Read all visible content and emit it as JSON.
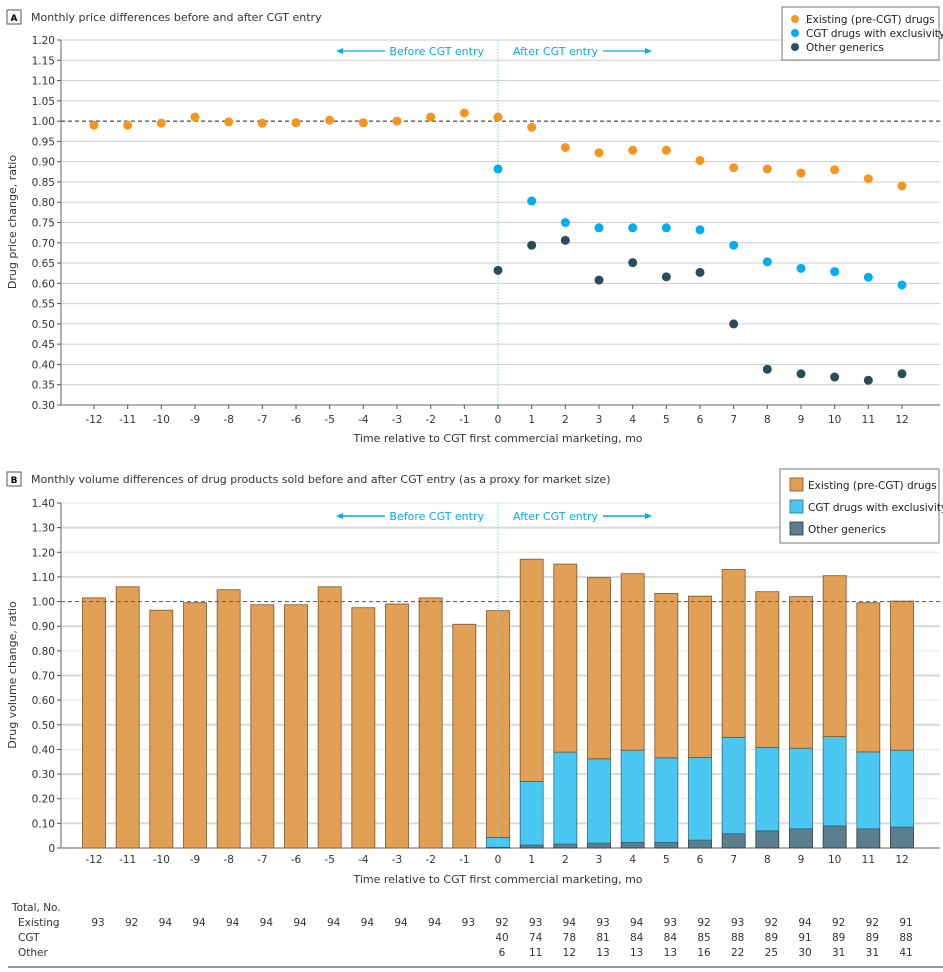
{
  "chart_data": [
    {
      "panel": "A",
      "type": "scatter",
      "title": "Monthly price differences before and after CGT entry",
      "xlabel": "Time relative to CGT first commercial marketing, mo",
      "ylabel": "Drug price change, ratio",
      "ylim": [
        0.3,
        1.2
      ],
      "yticks": [
        "0.30",
        "0.35",
        "0.40",
        "0.45",
        "0.50",
        "0.55",
        "0.60",
        "0.65",
        "0.70",
        "0.75",
        "0.80",
        "0.85",
        "0.90",
        "0.95",
        "1.00",
        "1.05",
        "1.10",
        "1.15",
        "1.20"
      ],
      "x": [
        -12,
        -11,
        -10,
        -9,
        -8,
        -7,
        -6,
        -5,
        -4,
        -3,
        -2,
        -1,
        0,
        1,
        2,
        3,
        4,
        5,
        6,
        7,
        8,
        9,
        10,
        11,
        12
      ],
      "reference_line": 1.0,
      "annotations": {
        "before": "Before CGT entry",
        "after": "After CGT entry"
      },
      "legend": "top-right",
      "grid": true,
      "series": [
        {
          "name": "Existing (pre-CGT) drugs",
          "color": "#f7941d",
          "x": [
            -12,
            -11,
            -10,
            -9,
            -8,
            -7,
            -6,
            -5,
            -4,
            -3,
            -2,
            -1,
            0,
            1,
            2,
            3,
            4,
            5,
            6,
            7,
            8,
            9,
            10,
            11,
            12
          ],
          "values": [
            0.99,
            0.99,
            0.995,
            1.01,
            0.998,
            0.995,
            0.996,
            1.002,
            0.996,
            1.0,
            1.01,
            1.02,
            1.01,
            0.985,
            0.935,
            0.922,
            0.928,
            0.928,
            0.903,
            0.885,
            0.882,
            0.872,
            0.88,
            0.858,
            0.84
          ]
        },
        {
          "name": "CGT drugs with exclusivity",
          "color": "#00aeef",
          "x": [
            0,
            1,
            2,
            3,
            4,
            5,
            6,
            7,
            8,
            9,
            10,
            11,
            12
          ],
          "values": [
            0.882,
            0.803,
            0.75,
            0.737,
            0.737,
            0.737,
            0.732,
            0.694,
            0.653,
            0.637,
            0.629,
            0.615,
            0.596
          ]
        },
        {
          "name": "Other generics",
          "color": "#2a4d5a",
          "x": [
            0,
            1,
            2,
            3,
            4,
            5,
            6,
            7,
            8,
            9,
            10,
            11,
            12
          ],
          "values": [
            0.632,
            0.694,
            0.706,
            0.608,
            0.651,
            0.616,
            0.627,
            0.5,
            0.388,
            0.377,
            0.369,
            0.361,
            0.377
          ]
        }
      ]
    },
    {
      "panel": "B",
      "type": "bar",
      "stacked": true,
      "title": "Monthly volume differences of drug products sold before and after CGT entry (as a proxy for market size)",
      "xlabel": "Time relative to CGT first commercial marketing, mo",
      "ylabel": "Drug volume change, ratio",
      "ylim": [
        0,
        1.4
      ],
      "yticks": [
        "0",
        "0.10",
        "0.20",
        "0.30",
        "0.40",
        "0.50",
        "0.60",
        "0.70",
        "0.80",
        "0.90",
        "1.00",
        "1.10",
        "1.20",
        "1.30",
        "1.40"
      ],
      "categories": [
        "-12",
        "-11",
        "-10",
        "-9",
        "-8",
        "-7",
        "-6",
        "-5",
        "-4",
        "-3",
        "-2",
        "-1",
        "0",
        "1",
        "2",
        "3",
        "4",
        "5",
        "6",
        "7",
        "8",
        "9",
        "10",
        "11",
        "12"
      ],
      "reference_line": 1.0,
      "annotations": {
        "before": "Before CGT entry",
        "after": "After CGT entry"
      },
      "legend": "top-right",
      "grid": true,
      "series": [
        {
          "name": "Other generics",
          "color": "#5b7f8e",
          "values": [
            0,
            0,
            0,
            0,
            0,
            0,
            0,
            0,
            0,
            0,
            0,
            0,
            0.003,
            0.012,
            0.016,
            0.02,
            0.023,
            0.023,
            0.032,
            0.058,
            0.07,
            0.078,
            0.09,
            0.078,
            0.085
          ]
        },
        {
          "name": "CGT drugs with exclusivity",
          "color": "#4bc8f2",
          "values": [
            0,
            0,
            0,
            0,
            0,
            0,
            0,
            0,
            0,
            0,
            0,
            0,
            0.04,
            0.258,
            0.373,
            0.342,
            0.374,
            0.343,
            0.335,
            0.391,
            0.338,
            0.327,
            0.362,
            0.312,
            0.312
          ]
        },
        {
          "name": "Existing (pre-CGT) drugs",
          "color": "#e2a057",
          "values": [
            1.015,
            1.06,
            0.965,
            0.995,
            1.048,
            0.987,
            0.987,
            1.06,
            0.975,
            0.99,
            1.015,
            0.908,
            0.92,
            0.902,
            0.763,
            0.735,
            0.716,
            0.667,
            0.655,
            0.681,
            0.632,
            0.615,
            0.653,
            0.605,
            0.605
          ]
        }
      ],
      "totals_table": {
        "header": "Total, No.",
        "rows": [
          {
            "label": "Existing",
            "values": [
              "93",
              "92",
              "94",
              "94",
              "94",
              "94",
              "94",
              "94",
              "94",
              "94",
              "94",
              "93",
              "92",
              "93",
              "94",
              "93",
              "94",
              "93",
              "92",
              "93",
              "92",
              "94",
              "92",
              "92",
              "91"
            ]
          },
          {
            "label": "CGT",
            "values": [
              "",
              "",
              "",
              "",
              "",
              "",
              "",
              "",
              "",
              "",
              "",
              "",
              "40",
              "74",
              "78",
              "81",
              "84",
              "84",
              "85",
              "88",
              "89",
              "91",
              "89",
              "89",
              "88"
            ]
          },
          {
            "label": "Other",
            "values": [
              "",
              "",
              "",
              "",
              "",
              "",
              "",
              "",
              "",
              "",
              "",
              "",
              "6",
              "11",
              "12",
              "13",
              "13",
              "13",
              "16",
              "22",
              "25",
              "30",
              "31",
              "31",
              "41"
            ]
          }
        ]
      }
    }
  ]
}
